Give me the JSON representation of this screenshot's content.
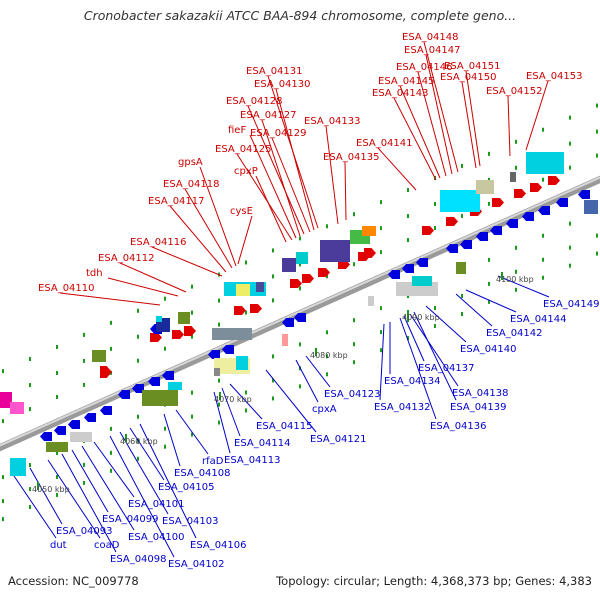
{
  "title": "Cronobacter sakazakii ATCC BAA-894 chromosome, complete geno...",
  "footer": {
    "accession": "Accession: NC_009778",
    "topology": "Topology: circular; Length: 4,368,373 bp; Genes: 4,383"
  },
  "colors": {
    "forward_gene": "#e00000",
    "reverse_gene": "#0000dd",
    "top_label": "#cc0000",
    "bottom_label": "#0000cc",
    "backbone": "#999999"
  },
  "scale_ticks": [
    "4050 kbp",
    "4060 kbp",
    "4070 kbp",
    "4080 kbp",
    "4090 kbp",
    "4100 kbp"
  ],
  "top_labels": [
    "ESA_04110",
    "tdh",
    "ESA_04112",
    "ESA_04116",
    "ESA_04117",
    "ESA_04118",
    "gpsA",
    "cysE",
    "cpxP",
    "ESA_04125",
    "fieF",
    "ESA_04127",
    "ESA_04128",
    "ESA_04129",
    "ESA_04130",
    "ESA_04131",
    "ESA_04133",
    "ESA_04135",
    "ESA_04141",
    "ESA_04143",
    "ESA_04145",
    "ESA_04146",
    "ESA_04147",
    "ESA_04148",
    "ESA_04150",
    "ESA_04151",
    "ESA_04152",
    "ESA_04153"
  ],
  "bottom_labels": [
    "dut",
    "ESA_04093",
    "coaD",
    "ESA_04098",
    "ESA_04099",
    "ESA_04100",
    "ESA_04101",
    "ESA_04102",
    "ESA_04103",
    "ESA_04105",
    "ESA_04106",
    "ESA_04108",
    "rfaD",
    "ESA_04113",
    "ESA_04114",
    "ESA_04115",
    "ESA_04121",
    "cpxA",
    "ESA_04123",
    "ESA_04132",
    "ESA_04134",
    "ESA_04136",
    "ESA_04137",
    "ESA_04138",
    "ESA_04139",
    "ESA_04140",
    "ESA_04142",
    "ESA_04144",
    "ESA_04149"
  ]
}
